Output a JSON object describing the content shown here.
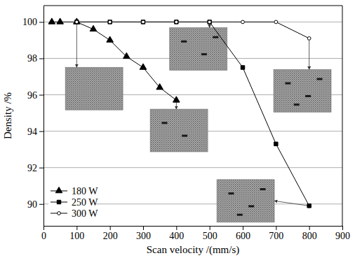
{
  "chart_data": {
    "type": "line",
    "x_label": "Scan velocity /(mm/s)",
    "y_label": "Density /%",
    "xlim": [
      0,
      900
    ],
    "xticks": [
      0,
      100,
      200,
      300,
      400,
      500,
      600,
      700,
      800,
      900
    ],
    "ylim": [
      88.8,
      100.9
    ],
    "yticks": [
      90,
      92,
      94,
      96,
      98,
      100
    ],
    "grid": true,
    "legend": "lower left",
    "series": [
      {
        "name": "180 W",
        "color": "#000000",
        "marker": "triangle",
        "line_style": "solid",
        "x": [
          25,
          50,
          100,
          150,
          200,
          250,
          300,
          350,
          400
        ],
        "values": [
          100,
          100,
          100,
          99.6,
          99.0,
          98.1,
          97.5,
          96.4,
          95.7
        ]
      },
      {
        "name": "250 W",
        "color": "#000000",
        "marker": "square",
        "line_style": "solid",
        "x": [
          100,
          200,
          300,
          400,
          500,
          600,
          700,
          800
        ],
        "values": [
          100,
          100,
          100,
          100,
          100,
          97.5,
          93.3,
          89.9
        ]
      },
      {
        "name": "300 W",
        "color": "#000000",
        "marker": "circle",
        "line_style": "solid",
        "x": [
          100,
          200,
          300,
          400,
          500,
          600,
          700,
          800
        ],
        "values": [
          100,
          100,
          100,
          100,
          100,
          100,
          100,
          99.1
        ]
      }
    ]
  }
}
